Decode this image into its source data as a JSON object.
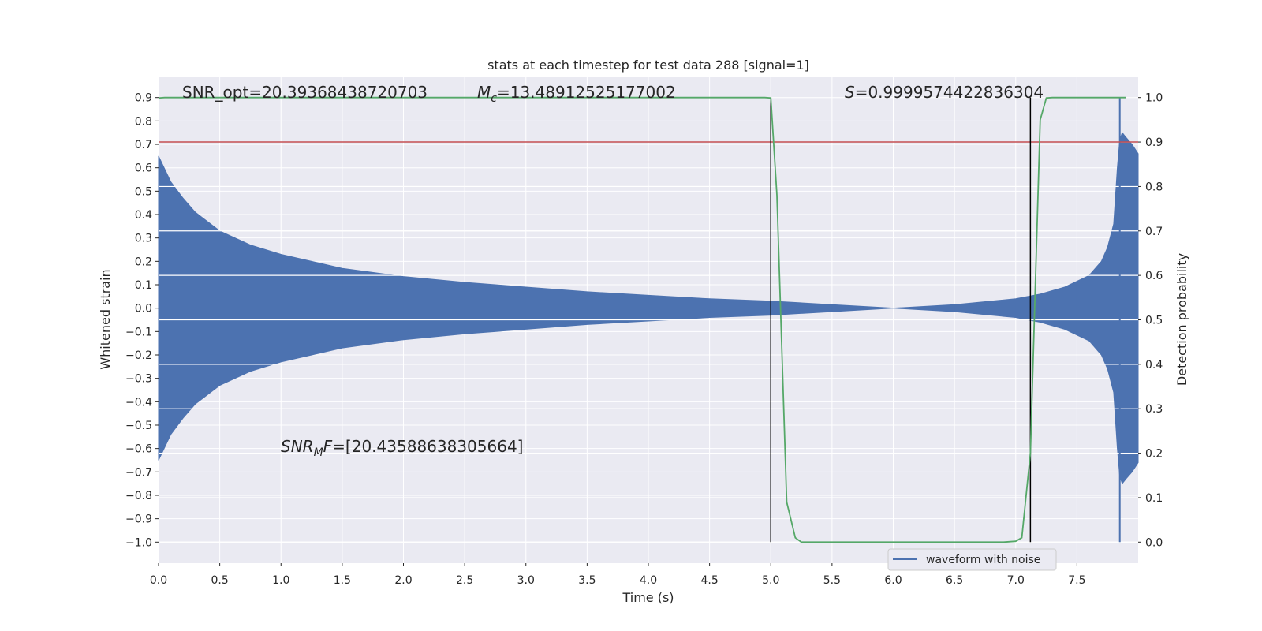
{
  "chart_data": {
    "type": "line",
    "title": "stats at each timestep for test data 288 [signal=1]",
    "xlabel": "Time (s)",
    "ylabel_left": "Whitened strain",
    "ylabel_right": "Detection probability",
    "xlim": [
      0.0,
      8.0
    ],
    "ylim_left": [
      -1.09,
      0.99
    ],
    "ylim_right": [
      0.0,
      1.0
    ],
    "grid": true,
    "legend_position": "lower-right",
    "x_ticks": [
      "0.0",
      "0.5",
      "1.0",
      "1.5",
      "2.0",
      "2.5",
      "3.0",
      "3.5",
      "4.0",
      "4.5",
      "5.0",
      "5.5",
      "6.0",
      "6.5",
      "7.0",
      "7.5"
    ],
    "y_left_ticks": [
      "0.9",
      "0.8",
      "0.7",
      "0.6",
      "0.5",
      "0.4",
      "0.3",
      "0.2",
      "0.1",
      "0.0",
      "-0.1",
      "-0.2",
      "-0.3",
      "-0.4",
      "-0.5",
      "-0.6",
      "-0.7",
      "-0.8",
      "-0.9",
      "-1.0"
    ],
    "y_right_ticks": [
      "1.0",
      "0.9",
      "0.8",
      "0.7",
      "0.6",
      "0.5",
      "0.4",
      "0.3",
      "0.2",
      "0.1",
      "0.0"
    ],
    "annotations": {
      "snr_opt": "SNR_opt=20.39368438720703",
      "mc_symbol": "M",
      "mc_sub": "c",
      "mc_value": "=13.48912525177002",
      "s_symbol": "S",
      "s_value": "=0.9999574422836304",
      "snr_mf_symbol": "SNR",
      "snr_mf_sub": "M",
      "snr_mf_tail": "F",
      "snr_mf_value": "=[20.43588638305664]"
    },
    "series": [
      {
        "name": "waveform with noise",
        "axis": "left",
        "color": "#4c72b0",
        "kind": "envelope",
        "x": [
          0.0,
          0.1,
          0.2,
          0.3,
          0.5,
          0.75,
          1.0,
          1.5,
          2.0,
          2.5,
          3.0,
          3.5,
          4.0,
          4.5,
          5.0,
          5.5,
          6.0,
          6.5,
          7.0,
          7.2,
          7.4,
          7.6,
          7.7,
          7.75,
          7.8,
          7.83,
          7.85,
          7.87,
          7.9,
          7.95,
          8.0
        ],
        "upper": [
          0.65,
          0.54,
          0.47,
          0.41,
          0.33,
          0.27,
          0.23,
          0.17,
          0.135,
          0.11,
          0.09,
          0.07,
          0.055,
          0.04,
          0.03,
          0.015,
          0.0,
          0.015,
          0.04,
          0.06,
          0.09,
          0.14,
          0.2,
          0.26,
          0.36,
          0.6,
          0.72,
          0.75,
          0.73,
          0.7,
          0.66
        ],
        "lower": [
          -0.65,
          -0.54,
          -0.47,
          -0.41,
          -0.33,
          -0.27,
          -0.23,
          -0.17,
          -0.135,
          -0.11,
          -0.09,
          -0.07,
          -0.055,
          -0.04,
          -0.03,
          -0.015,
          0.0,
          -0.015,
          -0.04,
          -0.06,
          -0.09,
          -0.14,
          -0.2,
          -0.26,
          -0.36,
          -0.6,
          -0.72,
          -0.75,
          -0.73,
          -0.7,
          -0.66
        ],
        "spike": {
          "x": 7.85,
          "low": -1.0,
          "high": 0.9
        }
      },
      {
        "name": "",
        "axis": "right",
        "color": "#55a868",
        "x": [
          0.0,
          0.05,
          4.95,
          5.0,
          5.05,
          5.13,
          5.2,
          5.25,
          5.5,
          6.0,
          6.5,
          6.9,
          7.0,
          7.05,
          7.12,
          7.2,
          7.25,
          7.3,
          7.5,
          7.9
        ],
        "values": [
          0.999,
          1.0,
          1.0,
          0.999,
          0.78,
          0.09,
          0.01,
          0.0,
          0.0,
          0.0,
          0.0,
          0.0,
          0.002,
          0.01,
          0.2,
          0.95,
          0.999,
          1.0,
          1.0,
          1.0
        ]
      }
    ],
    "threshold": {
      "axis": "right",
      "value": 0.9,
      "color": "#c44e52"
    },
    "vlines": [
      {
        "x": 5.0,
        "y_range": [
          -1.0,
          0.9
        ],
        "color": "#000000"
      },
      {
        "x": 7.12,
        "y_range": [
          -1.0,
          0.9
        ],
        "color": "#000000"
      }
    ],
    "right_grid_values": [
      0.9,
      0.8,
      0.7,
      0.6,
      0.5,
      0.4,
      0.3,
      0.2,
      0.1,
      0.0
    ],
    "colors": {
      "background": "#eaeaf2",
      "grid": "#ffffff"
    }
  }
}
